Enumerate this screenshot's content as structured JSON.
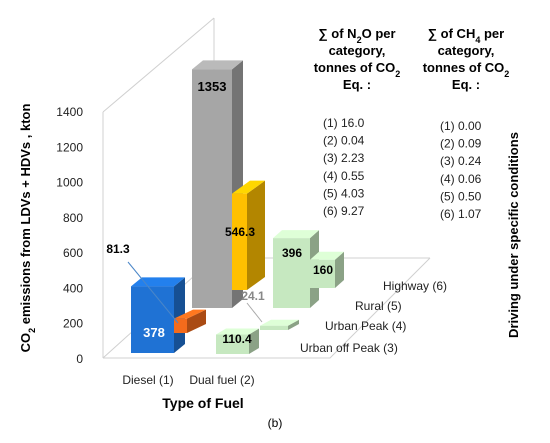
{
  "chart_data": {
    "type": "bar",
    "variant": "3d-clustered",
    "title": "",
    "xlabel": "Type of Fuel",
    "ylabel": "CO₂ emissions from LDVs + HDVs , kton",
    "zlabel": "Driving under specific conditions",
    "ylim": [
      0,
      1400
    ],
    "yticks": [
      0,
      200,
      400,
      600,
      800,
      1000,
      1200,
      1400
    ],
    "grid": false,
    "categories": [
      "Diesel (1)",
      "Dual fuel (2)"
    ],
    "depth_labels": [
      "Highway (6)",
      "Rural (5)",
      "Urban Peak (4)",
      "Urban off Peak (3)"
    ],
    "bars": [
      {
        "category": "Diesel (1)",
        "value": 378,
        "label": "378",
        "color": "#1f72d4"
      },
      {
        "category": "Diesel (1)",
        "value": 81.3,
        "label": "81.3",
        "color": "#f36b1c"
      },
      {
        "category": "Dual fuel (2)",
        "value": 1353,
        "label": "1353",
        "color": "#a6a6a6"
      },
      {
        "category": "Dual fuel (2)",
        "value": 546.3,
        "label": "546.3",
        "color": "#ffc000"
      },
      {
        "condition": "Highway (6)",
        "value": 396,
        "label": "396",
        "color": "#c6e8c0"
      },
      {
        "condition": "Highway (6)",
        "value": 160,
        "label": "160",
        "color": "#c6e8c0"
      },
      {
        "condition": "Urban Peak (4)",
        "value": 24.1,
        "label": "24.1",
        "color": "#c6e8c0"
      },
      {
        "condition": "Urban off Peak (3)",
        "value": 110.4,
        "label": "110.4",
        "color": "#c6e8c0"
      }
    ],
    "annotations": {
      "n2o_header": [
        "∑ of N₂O per",
        "category,",
        "tonnes of CO₂",
        "Eq. :"
      ],
      "n2o_values": [
        "(1) 16.0",
        "(2) 0.04",
        "(3) 2.23",
        "(4) 0.55",
        "(5) 4.03",
        "(6) 9.27"
      ],
      "ch4_header": [
        "∑ of CH₄ per",
        "category,",
        "tonnes of CO₂",
        "Eq. :"
      ],
      "ch4_values": [
        "(1) 0.00",
        "(2) 0.09",
        "(3) 0.24",
        "(4) 0.06",
        "(5) 0.50",
        "(6) 1.07"
      ]
    },
    "caption": "(b)"
  }
}
